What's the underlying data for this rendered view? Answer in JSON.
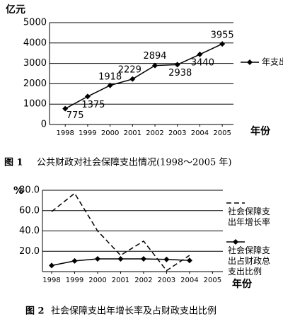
{
  "chart_data": [
    {
      "type": "line",
      "figure_label": "图 1",
      "caption": "公共财政对社会保障支出情况(1998～2005 年)",
      "y_label": "亿元",
      "x_label": "年份",
      "x": [
        1998,
        1999,
        2000,
        2001,
        2002,
        2003,
        2004,
        2005
      ],
      "xticks": [
        1998,
        1999,
        2000,
        2001,
        2002,
        2003,
        2004,
        2005
      ],
      "xlim": [
        1997.3,
        2005.5
      ],
      "ylim": [
        0,
        5000
      ],
      "yticks": [
        0,
        1000,
        2000,
        3000,
        4000,
        5000
      ],
      "grid": true,
      "series": [
        {
          "name": "年支出",
          "color": "#000000",
          "style": "solid",
          "marker": "diamond",
          "values": [
            775,
            1375,
            1918,
            2229,
            2894,
            2938,
            3440,
            3955
          ]
        }
      ]
    },
    {
      "type": "line",
      "figure_label": "图 2",
      "caption": "社会保障支出年增长率及占财政支出比例",
      "y_label": "%",
      "x_label": "年份",
      "x": [
        1998,
        1999,
        2000,
        2001,
        2002,
        2003,
        2004
      ],
      "xticks": [
        1998,
        1999,
        2000,
        2001,
        2002,
        2003,
        2004,
        2005
      ],
      "xlim": [
        1997.6,
        2005.45
      ],
      "ylim": [
        0,
        80
      ],
      "yticks": [
        {
          "value": 20,
          "label": "20.0"
        },
        {
          "value": 40,
          "label": "40.0"
        },
        {
          "value": 60,
          "label": "60.0"
        },
        {
          "value": 80,
          "label": "80.0"
        }
      ],
      "grid": true,
      "series": [
        {
          "name": "社会保障支出年增长率",
          "color": "#000000",
          "style": "dashed",
          "marker": "none",
          "values": [
            59,
            77,
            40,
            16,
            30,
            1,
            16
          ]
        },
        {
          "name": "社会保障支出占财政总支出比例",
          "color": "#000000",
          "style": "solid",
          "marker": "diamond",
          "values": [
            6,
            10.5,
            12.5,
            12.5,
            12.5,
            12,
            11
          ]
        }
      ]
    }
  ]
}
